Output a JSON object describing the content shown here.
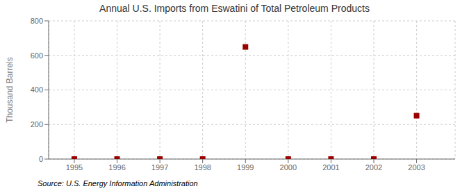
{
  "chart_data": {
    "type": "scatter",
    "title": "Annual U.S. Imports from Eswatini of Total Petroleum Products",
    "ylabel": "Thousand Barrels",
    "source": "Source: U.S. Energy Information Administration",
    "x": [
      1995,
      1996,
      1997,
      1998,
      1999,
      2000,
      2001,
      2002,
      2003
    ],
    "values": [
      0,
      0,
      0,
      0,
      649,
      0,
      0,
      0,
      251
    ],
    "color": "#990000",
    "marker": "square",
    "xlim": [
      1994.4,
      2003.9
    ],
    "ylim": [
      0,
      800
    ],
    "xticks": [
      1995,
      1996,
      1997,
      1998,
      1999,
      2000,
      2001,
      2002,
      2003
    ],
    "yticks": [
      0,
      200,
      400,
      600,
      800
    ],
    "grid": true
  }
}
